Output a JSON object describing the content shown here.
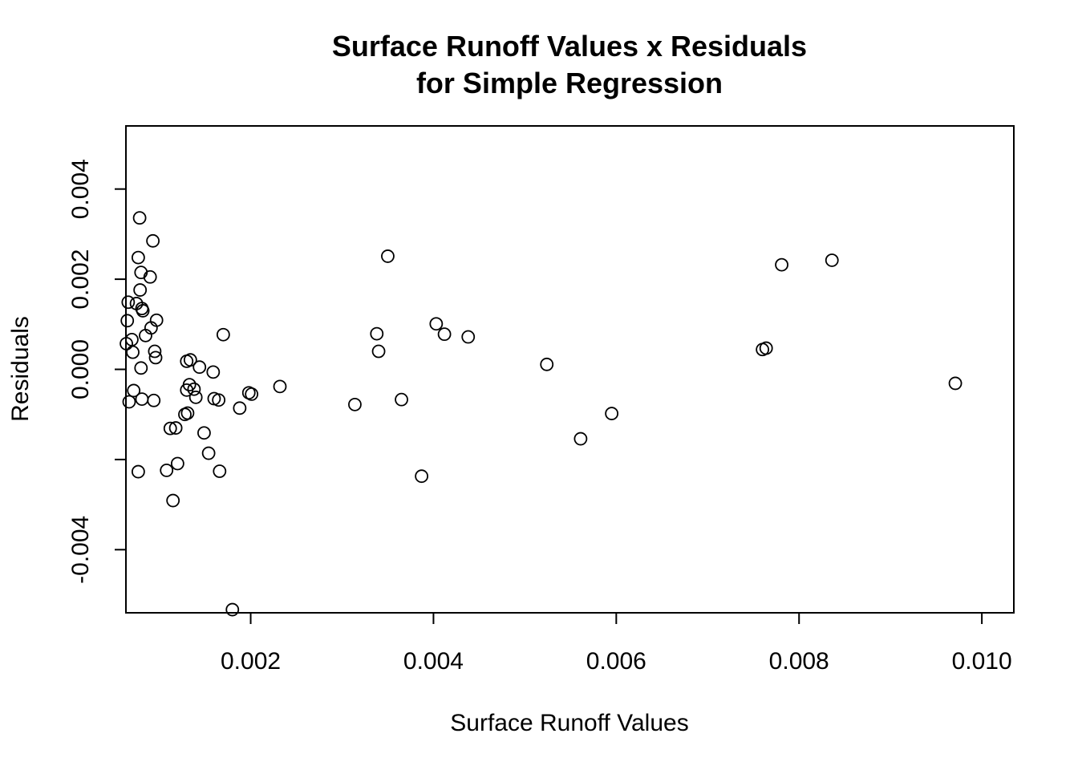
{
  "chart_data": {
    "type": "scatter",
    "title": [
      "Surface Runoff Values x Residuals",
      "for Simple Regression"
    ],
    "xlabel": "Surface Runoff Values",
    "ylabel": "Residuals",
    "xlim": [
      0.000635,
      0.01035
    ],
    "ylim": [
      -0.0054,
      0.0054
    ],
    "x_ticks": [
      {
        "value": 0.002,
        "label": "0.002"
      },
      {
        "value": 0.004,
        "label": "0.004"
      },
      {
        "value": 0.006,
        "label": "0.006"
      },
      {
        "value": 0.008,
        "label": "0.008"
      },
      {
        "value": 0.01,
        "label": "0.010"
      }
    ],
    "y_ticks": [
      {
        "value": -0.004,
        "label": "-0.004"
      },
      {
        "value": -0.002,
        "label": ""
      },
      {
        "value": 0.0,
        "label": "0.000"
      },
      {
        "value": 0.002,
        "label": "0.002"
      },
      {
        "value": 0.004,
        "label": "0.004"
      }
    ],
    "grid": false,
    "series": [
      {
        "points": [
          {
            "x": 0.000785,
            "y": 0.00336
          },
          {
            "x": 0.00093,
            "y": 0.00285
          },
          {
            "x": 0.00077,
            "y": 0.00248
          },
          {
            "x": 0.0008,
            "y": 0.00215
          },
          {
            "x": 0.0009,
            "y": 0.00205
          },
          {
            "x": 0.00079,
            "y": 0.00176
          },
          {
            "x": 0.00066,
            "y": 0.00149
          },
          {
            "x": 0.00075,
            "y": 0.00146
          },
          {
            "x": 0.00081,
            "y": 0.00135
          },
          {
            "x": 0.00082,
            "y": 0.0013
          },
          {
            "x": 0.00065,
            "y": 0.00108
          },
          {
            "x": 0.00097,
            "y": 0.00109
          },
          {
            "x": 0.00091,
            "y": 0.00092
          },
          {
            "x": 0.00085,
            "y": 0.00075
          },
          {
            "x": 0.0007,
            "y": 0.00066
          },
          {
            "x": 0.00064,
            "y": 0.00057
          },
          {
            "x": 0.00071,
            "y": 0.00038
          },
          {
            "x": 0.00095,
            "y": 0.0004
          },
          {
            "x": 0.00096,
            "y": 0.00026
          },
          {
            "x": 0.0008,
            "y": 3e-05
          },
          {
            "x": 0.00072,
            "y": -0.00047
          },
          {
            "x": 0.00081,
            "y": -0.00066
          },
          {
            "x": 0.00094,
            "y": -0.00069
          },
          {
            "x": 0.00067,
            "y": -0.00072
          },
          {
            "x": 0.00077,
            "y": -0.00227
          },
          {
            "x": 0.0013,
            "y": 0.00018
          },
          {
            "x": 0.00134,
            "y": 0.00021
          },
          {
            "x": 0.00144,
            "y": 5e-05
          },
          {
            "x": 0.00159,
            "y": -6e-05
          },
          {
            "x": 0.0017,
            "y": 0.00077
          },
          {
            "x": 0.00133,
            "y": -0.00034
          },
          {
            "x": 0.0013,
            "y": -0.00046
          },
          {
            "x": 0.00138,
            "y": -0.00044
          },
          {
            "x": 0.0014,
            "y": -0.00062
          },
          {
            "x": 0.0016,
            "y": -0.00065
          },
          {
            "x": 0.00165,
            "y": -0.00068
          },
          {
            "x": 0.00128,
            "y": -0.001
          },
          {
            "x": 0.00131,
            "y": -0.00097
          },
          {
            "x": 0.00112,
            "y": -0.00131
          },
          {
            "x": 0.00118,
            "y": -0.0013
          },
          {
            "x": 0.00149,
            "y": -0.00141
          },
          {
            "x": 0.00154,
            "y": -0.00186
          },
          {
            "x": 0.0012,
            "y": -0.00209
          },
          {
            "x": 0.00108,
            "y": -0.00224
          },
          {
            "x": 0.00166,
            "y": -0.00226
          },
          {
            "x": 0.00115,
            "y": -0.00291
          },
          {
            "x": 0.0018,
            "y": -0.00533
          },
          {
            "x": 0.00188,
            "y": -0.00086
          },
          {
            "x": 0.00198,
            "y": -0.00052
          },
          {
            "x": 0.00201,
            "y": -0.00055
          },
          {
            "x": 0.00232,
            "y": -0.00038
          },
          {
            "x": 0.00314,
            "y": -0.00078
          },
          {
            "x": 0.00338,
            "y": 0.00079
          },
          {
            "x": 0.0034,
            "y": 0.0004
          },
          {
            "x": 0.0035,
            "y": 0.00251
          },
          {
            "x": 0.00365,
            "y": -0.00067
          },
          {
            "x": 0.00387,
            "y": -0.00237
          },
          {
            "x": 0.00403,
            "y": 0.00101
          },
          {
            "x": 0.00412,
            "y": 0.00078
          },
          {
            "x": 0.00438,
            "y": 0.00072
          },
          {
            "x": 0.00524,
            "y": 0.00011
          },
          {
            "x": 0.00561,
            "y": -0.00154
          },
          {
            "x": 0.00595,
            "y": -0.00098
          },
          {
            "x": 0.0076,
            "y": 0.00044
          },
          {
            "x": 0.00764,
            "y": 0.00047
          },
          {
            "x": 0.00781,
            "y": 0.00232
          },
          {
            "x": 0.00836,
            "y": 0.00242
          },
          {
            "x": 0.00971,
            "y": -0.00031
          }
        ]
      }
    ]
  }
}
